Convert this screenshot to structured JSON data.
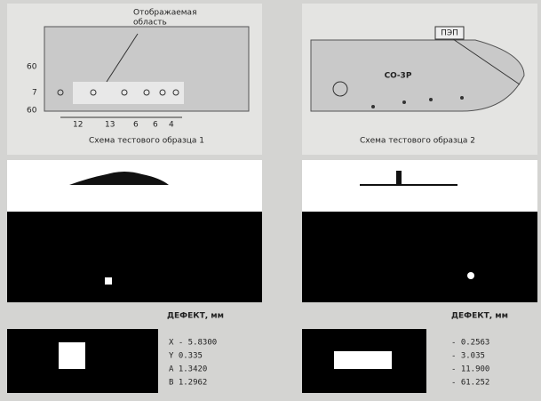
{
  "sample1": {
    "region_label_1": "Отображаемая",
    "region_label_2": "область",
    "dims_left": [
      "60",
      "7",
      "60"
    ],
    "dims_bottom": [
      "12",
      "13",
      "6",
      "6",
      "4"
    ],
    "caption": "Схема тестового образца 1"
  },
  "sample2": {
    "probe": "ПЭП",
    "block": "СО-3Р",
    "caption": "Схема тестового образца 2"
  },
  "result1": {
    "heading": "ДЕФЕКТ, мм",
    "lines": [
      "X  - 5.8300",
      "Y    0.335",
      "A    1.3420",
      "B    1.2962"
    ]
  },
  "result2": {
    "heading": "ДЕФЕКТ, мм",
    "lines": [
      "-   0.2563",
      "-   3.035",
      "-   11.900",
      "-   61.252"
    ]
  }
}
